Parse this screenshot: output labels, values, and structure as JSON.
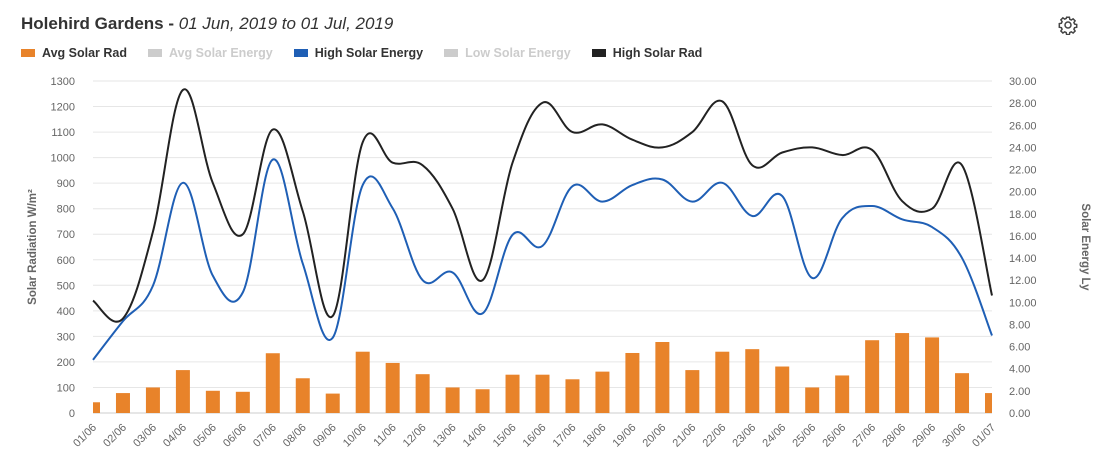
{
  "header": {
    "title": "Holehird Gardens",
    "separator": "-",
    "date_range": "01 Jun, 2019 to 01 Jul, 2019"
  },
  "icons": {
    "settings": "gear-icon"
  },
  "legend": [
    {
      "label": "Avg Solar Rad",
      "color": "#e8832a",
      "visible": true
    },
    {
      "label": "Avg Solar Energy",
      "color": "#cccccc",
      "visible": false
    },
    {
      "label": "High Solar Energy",
      "color": "#1f5fb5",
      "visible": true
    },
    {
      "label": "Low Solar Energy",
      "color": "#cccccc",
      "visible": false
    },
    {
      "label": "High Solar Rad",
      "color": "#222222",
      "visible": true
    }
  ],
  "chart_data": {
    "type": "bar",
    "categories": [
      "01/06",
      "02/06",
      "03/06",
      "04/06",
      "05/06",
      "06/06",
      "07/06",
      "08/06",
      "09/06",
      "10/06",
      "11/06",
      "12/06",
      "13/06",
      "14/06",
      "15/06",
      "16/06",
      "17/06",
      "18/06",
      "19/06",
      "20/06",
      "21/06",
      "22/06",
      "23/06",
      "24/06",
      "25/06",
      "26/06",
      "27/06",
      "28/06",
      "29/06",
      "30/06",
      "01/07"
    ],
    "left_axis": {
      "title": "Solar Radiation W/m²",
      "min": 0,
      "max": 1300,
      "ticks": [
        "0",
        "100",
        "200",
        "300",
        "400",
        "500",
        "600",
        "700",
        "800",
        "900",
        "1000",
        "1100",
        "1200",
        "1300"
      ]
    },
    "right_axis": {
      "title": "Solar Energy Ly",
      "min": 0,
      "max": 30,
      "ticks": [
        "0.00",
        "2.00",
        "4.00",
        "6.00",
        "8.00",
        "10.00",
        "12.00",
        "14.00",
        "16.00",
        "18.00",
        "20.00",
        "22.00",
        "24.00",
        "26.00",
        "28.00",
        "30.00"
      ]
    },
    "grid": true,
    "legend_position": "top-left",
    "series": [
      {
        "name": "Avg Solar Rad",
        "type": "bar",
        "axis": "left",
        "color": "#e8832a",
        "values": [
          42,
          78,
          100,
          168,
          87,
          83,
          234,
          136,
          76,
          240,
          196,
          152,
          100,
          93,
          150,
          150,
          132,
          162,
          235,
          278,
          168,
          240,
          250,
          182,
          100,
          147,
          285,
          313,
          296,
          156,
          78
        ]
      },
      {
        "name": "High Solar Energy",
        "type": "line",
        "axis": "right",
        "color": "#1f5fb5",
        "values": [
          4.8,
          8.3,
          11.5,
          20.8,
          12.4,
          10.9,
          22.9,
          13.5,
          6.8,
          20.6,
          18.5,
          12.0,
          12.7,
          9.0,
          16.1,
          15.1,
          20.5,
          19.1,
          20.6,
          21.1,
          19.1,
          20.8,
          17.8,
          19.6,
          12.2,
          17.6,
          18.7,
          17.5,
          16.8,
          14.0,
          7.0
        ]
      },
      {
        "name": "High Solar Rad",
        "type": "line",
        "axis": "left",
        "color": "#222222",
        "values": [
          440,
          370,
          710,
          1265,
          900,
          700,
          1110,
          790,
          380,
          1060,
          980,
          970,
          800,
          520,
          980,
          1215,
          1100,
          1130,
          1070,
          1040,
          1100,
          1220,
          970,
          1020,
          1040,
          1010,
          1030,
          830,
          800,
          970,
          460
        ]
      }
    ]
  }
}
